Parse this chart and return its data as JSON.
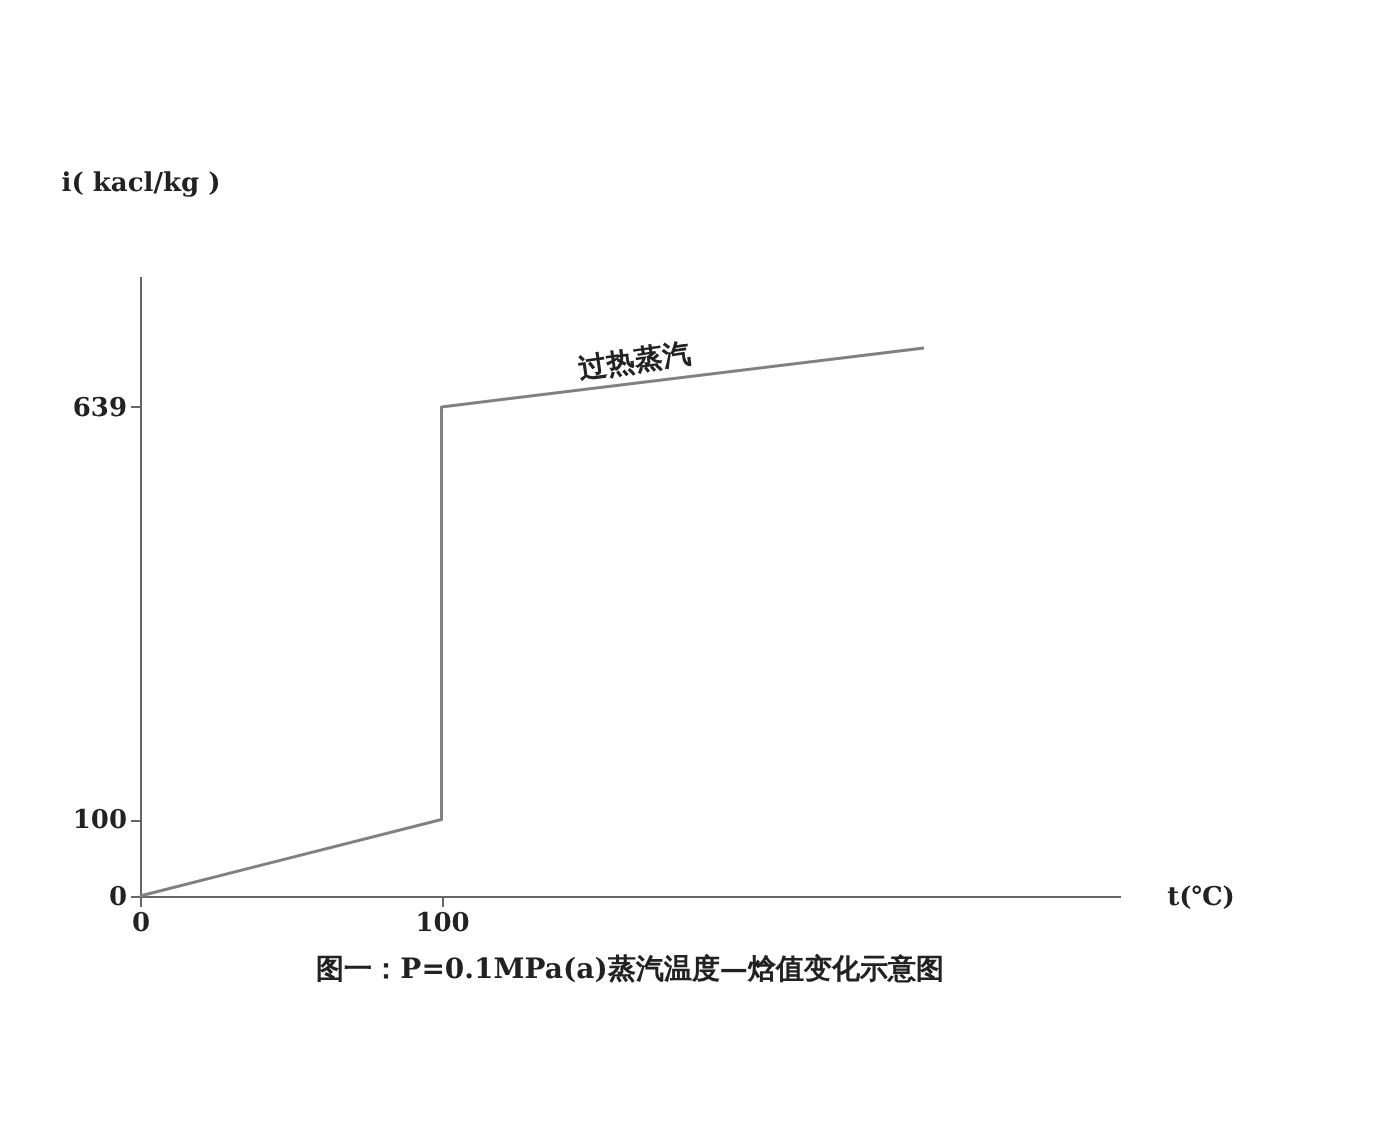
{
  "chart_data": {
    "type": "line",
    "title": "图一：P=0.1MPa(a)蒸汽温度—焓值变化示意图",
    "xlabel": "t(℃)",
    "ylabel": "i( kacl/kg )",
    "x": [
      0,
      100,
      100,
      260
    ],
    "series": [
      {
        "color": "#808080",
        "values": [
          0,
          100,
          639,
          716
        ]
      }
    ],
    "xlim": [
      0,
      325
    ],
    "ylim": [
      0,
      810
    ],
    "xticks": [
      0,
      100
    ],
    "yticks": [
      0,
      100,
      639
    ],
    "annotations": [
      {
        "text": "过热蒸汽",
        "x": 165,
        "y": 672
      }
    ],
    "grid": false,
    "marker": "none",
    "line_style": "solid"
  }
}
